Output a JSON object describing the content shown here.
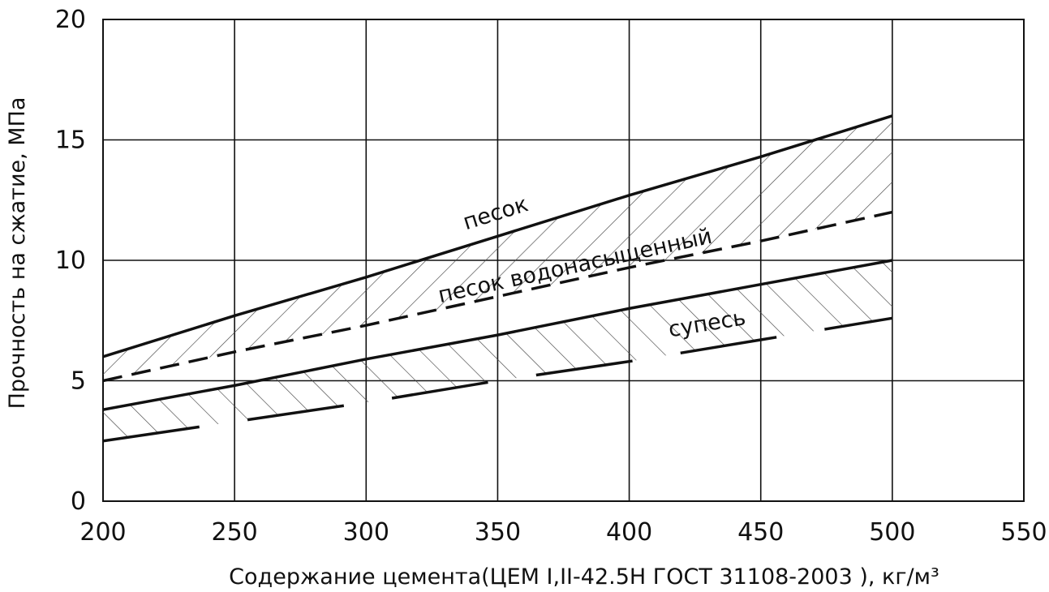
{
  "chart_data": {
    "type": "line",
    "xlabel": "Содержание цемента(ЦЕМ I,II-42.5Н ГОСТ 31108-2003 ), кг/м³",
    "ylabel": "Прочность на сжатие, МПа",
    "xlim": [
      200,
      550
    ],
    "ylim": [
      0,
      20
    ],
    "x_ticks": [
      200,
      250,
      300,
      350,
      400,
      450,
      500,
      550
    ],
    "y_ticks": [
      0,
      5,
      10,
      15,
      20
    ],
    "grid": true,
    "legend": "none",
    "series": [
      {
        "name": "песок",
        "style": "solid",
        "x": [
          200,
          250,
          300,
          350,
          400,
          450,
          500
        ],
        "y": [
          6.0,
          7.7,
          9.3,
          11.0,
          12.7,
          14.3,
          16.0
        ]
      },
      {
        "name": "песок водонасыщенный",
        "style": "dashed",
        "x": [
          200,
          250,
          300,
          350,
          400,
          450,
          500
        ],
        "y": [
          5.0,
          6.2,
          7.3,
          8.5,
          9.7,
          10.8,
          12.0
        ]
      },
      {
        "style": "solid",
        "x": [
          200,
          250,
          300,
          350,
          400,
          450,
          500
        ],
        "y": [
          3.8,
          4.8,
          5.9,
          6.9,
          8.0,
          9.0,
          10.0
        ]
      },
      {
        "name": "супесь",
        "style": "long-dashed",
        "x": [
          200,
          250,
          300,
          350,
          400,
          450,
          500
        ],
        "y": [
          2.5,
          3.3,
          4.1,
          5.0,
          5.8,
          6.7,
          7.6
        ]
      }
    ],
    "shaded_bands": [
      {
        "upper": "песок",
        "lower": "песок водонасыщенный"
      },
      {
        "upper": 2,
        "lower": "супесь"
      }
    ]
  }
}
